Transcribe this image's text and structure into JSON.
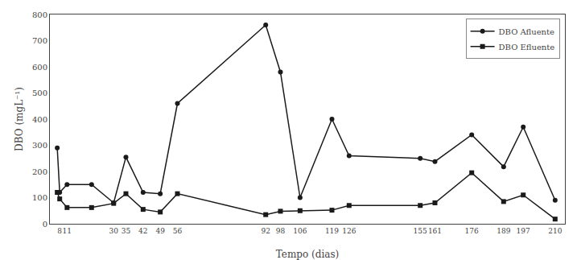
{
  "chart_data": {
    "type": "line",
    "xlabel": "Tempo (dias)",
    "ylabel": "DBO (mgL⁻¹)",
    "series": [
      {
        "name": "DBO Afluente",
        "color": "#1a1a1a",
        "marker": "circle",
        "line_style": "solid",
        "x": [
          7,
          8,
          11,
          21,
          30,
          35,
          42,
          49,
          56,
          92,
          98,
          106,
          119,
          126,
          155,
          161,
          176,
          189,
          197,
          210
        ],
        "values": [
          290,
          120,
          150,
          150,
          80,
          255,
          120,
          115,
          460,
          760,
          580,
          100,
          400,
          260,
          250,
          238,
          340,
          218,
          370,
          90
        ]
      },
      {
        "name": "DBO Efluente",
        "color": "#1a1a1a",
        "marker": "square",
        "line_style": "solid",
        "x": [
          7,
          8,
          11,
          21,
          30,
          35,
          42,
          49,
          56,
          92,
          98,
          106,
          119,
          126,
          155,
          161,
          176,
          189,
          197,
          210
        ],
        "values": [
          120,
          95,
          62,
          62,
          78,
          115,
          55,
          45,
          115,
          35,
          48,
          50,
          52,
          70,
          70,
          80,
          195,
          85,
          110,
          18
        ]
      }
    ],
    "xlim": [
      4,
      214
    ],
    "xticks": [
      8,
      11,
      30,
      35,
      42,
      49,
      56,
      92,
      98,
      106,
      119,
      126,
      155,
      161,
      176,
      189,
      197,
      210
    ],
    "ylim": [
      0,
      800
    ],
    "yticks": [
      0,
      100,
      200,
      300,
      400,
      500,
      600,
      700,
      800
    ],
    "grid": false,
    "legend": "upper right"
  }
}
